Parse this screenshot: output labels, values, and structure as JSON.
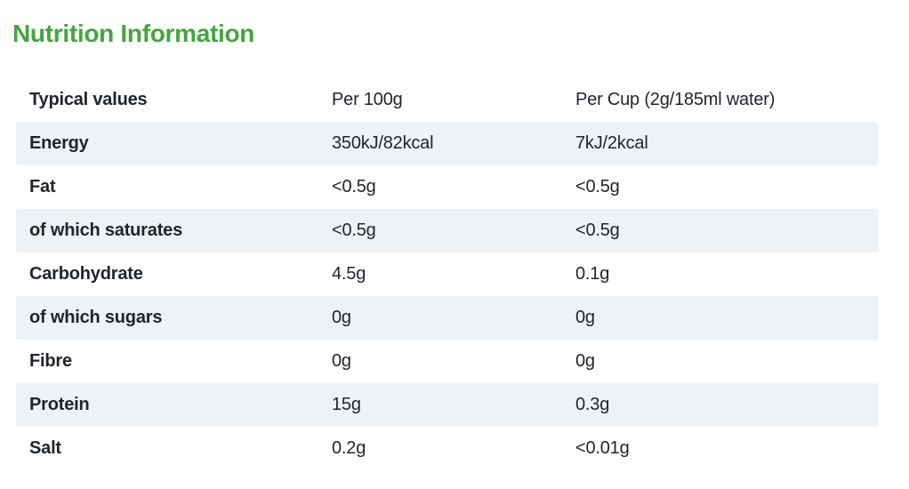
{
  "title": "Nutrition Information",
  "colors": {
    "accent_green": "#43a63c",
    "stripe_gray": "#eff2f5",
    "text_dark": "#21252b",
    "background": "#ffffff"
  },
  "table": {
    "header": {
      "label": "Typical values",
      "per_100g": "Per 100g",
      "per_cup": "Per Cup (2g/185ml water)"
    },
    "rows": [
      {
        "label": "Energy",
        "per_100g": "350kJ/82kcal",
        "per_cup": "7kJ/2kcal",
        "striped": true
      },
      {
        "label": "Fat",
        "per_100g": "<0.5g",
        "per_cup": "<0.5g",
        "striped": false
      },
      {
        "label": "of which saturates",
        "per_100g": "<0.5g",
        "per_cup": "<0.5g",
        "striped": true
      },
      {
        "label": "Carbohydrate",
        "per_100g": "4.5g",
        "per_cup": "0.1g",
        "striped": false
      },
      {
        "label": "of which sugars",
        "per_100g": "0g",
        "per_cup": "0g",
        "striped": true
      },
      {
        "label": "Fibre",
        "per_100g": "0g",
        "per_cup": "0g",
        "striped": false
      },
      {
        "label": "Protein",
        "per_100g": "15g",
        "per_cup": "0.3g",
        "striped": true
      },
      {
        "label": "Salt",
        "per_100g": "0.2g",
        "per_cup": "<0.01g",
        "striped": false
      }
    ]
  }
}
